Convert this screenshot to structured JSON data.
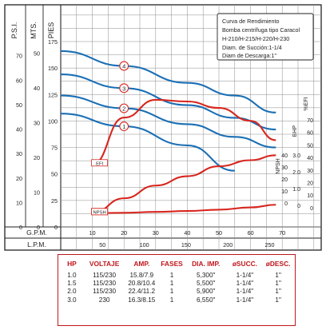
{
  "legend_box": {
    "lines": [
      "Curva de Rendimiento",
      "Bomba centrífuga tipo Caracol",
      "H-210/H-215/H-220/H-230",
      "Diam. de Succión:1-1/4",
      "Diam de Descarga:1\""
    ]
  },
  "colors": {
    "blue": "#1a6fb5",
    "red": "#d7261e",
    "grid": "#8c8c8c",
    "table_border": "#c0161c"
  },
  "chart_data": {
    "type": "line",
    "axes": {
      "psi": {
        "label": "P.S.I.",
        "ticks": [
          "70",
          "60",
          "50",
          "40",
          "30",
          "20",
          "10",
          "0"
        ]
      },
      "mts": {
        "label": "MTS.",
        "ticks": [
          "50",
          "40",
          "30",
          "20",
          "10",
          "0"
        ]
      },
      "pies": {
        "label": "PIES",
        "ticks": [
          "175",
          "150",
          "125",
          "100",
          "75",
          "50",
          "25",
          "0"
        ]
      },
      "gpm": {
        "label": "G.P.M.",
        "ticks": [
          "10",
          "20",
          "30",
          "40",
          "50",
          "60",
          "70"
        ],
        "range": [
          0,
          76
        ]
      },
      "lpm": {
        "label": "L.P.M.",
        "ticks": [
          "50",
          "100",
          "150",
          "200",
          "250"
        ]
      },
      "right": {
        "efi": {
          "label": "%EFI",
          "ticks": [
            "70",
            "60",
            "50",
            "40",
            "30",
            "20",
            "10",
            "0"
          ]
        },
        "bhp": {
          "label": "BHP",
          "ticks": [
            "3.0",
            "2.0",
            "1.0",
            "0"
          ]
        },
        "npsh": {
          "label": "NPSH",
          "ticks": [
            "40",
            "30",
            "20",
            "10",
            "0"
          ]
        }
      }
    },
    "head_range_ft": [
      0,
      175
    ],
    "series": [
      {
        "name": "4",
        "points": [
          [
            0,
            166
          ],
          [
            20,
            152
          ],
          [
            40,
            136
          ],
          [
            55,
            124
          ],
          [
            68,
            108
          ]
        ]
      },
      {
        "name": "3",
        "points": [
          [
            0,
            144
          ],
          [
            20,
            131
          ],
          [
            40,
            115
          ],
          [
            55,
            103
          ],
          [
            68,
            92
          ]
        ]
      },
      {
        "name": "2",
        "points": [
          [
            0,
            124
          ],
          [
            20,
            112
          ],
          [
            40,
            97
          ],
          [
            55,
            85
          ],
          [
            68,
            75
          ]
        ]
      },
      {
        "name": "1",
        "points": [
          [
            0,
            107
          ],
          [
            20,
            95
          ],
          [
            40,
            77
          ],
          [
            55,
            53
          ]
        ]
      }
    ],
    "efi_curve": {
      "label": "EFI",
      "points": [
        [
          10,
          11
        ],
        [
          20,
          40
        ],
        [
          30,
          51
        ],
        [
          40,
          50
        ],
        [
          50,
          46
        ],
        [
          60,
          38
        ],
        [
          68,
          26
        ]
      ]
    },
    "bhp_curve": {
      "label": "BHP",
      "points": [
        [
          10,
          25
        ],
        [
          20,
          52
        ],
        [
          30,
          75
        ],
        [
          40,
          92
        ],
        [
          50,
          110
        ],
        [
          60,
          121
        ],
        [
          68,
          130
        ]
      ]
    },
    "npsh_curve": {
      "label": "NPSH",
      "points": [
        [
          10,
          2
        ],
        [
          20,
          3
        ],
        [
          30,
          5
        ],
        [
          40,
          7
        ],
        [
          50,
          10
        ],
        [
          60,
          15
        ],
        [
          68,
          21
        ]
      ]
    }
  },
  "spec_table": {
    "headers": [
      "HP",
      "VOLTAJE",
      "AMP.",
      "FASES",
      "DIA. IMP.",
      "øSUCC.",
      "øDESC."
    ],
    "rows": [
      [
        "1.0",
        "115/230",
        "15.8/7.9",
        "1",
        "5,300\"",
        "1-1/4\"",
        "1\""
      ],
      [
        "1.5",
        "115/230",
        "20.8/10.4",
        "1",
        "5,500\"",
        "1-1/4\"",
        "1\""
      ],
      [
        "2.0",
        "115/230",
        "22.4/11.2",
        "1",
        "5,900\"",
        "1-1/4\"",
        "1\""
      ],
      [
        "3.0",
        "230",
        "16.3/8.15",
        "1",
        "6,550\"",
        "1-1/4\"",
        "1\""
      ]
    ]
  }
}
